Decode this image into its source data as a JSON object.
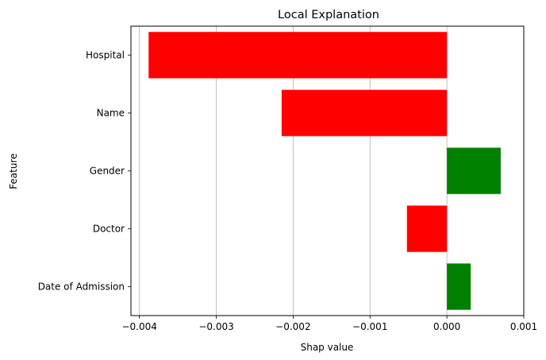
{
  "chart_data": {
    "type": "bar",
    "orientation": "horizontal",
    "title": "Local Explanation",
    "xlabel": "Shap value",
    "ylabel": "Feature",
    "categories": [
      "Hospital",
      "Name",
      "Gender",
      "Doctor",
      "Date of Admission"
    ],
    "values": [
      -0.00388,
      -0.00215,
      0.0007,
      -0.00052,
      0.00031
    ],
    "bar_colors": [
      "#ff0000",
      "#ff0000",
      "#008000",
      "#ff0000",
      "#008000"
    ],
    "xlim": [
      -0.00411,
      0.001
    ],
    "xticks": [
      -0.004,
      -0.003,
      -0.002,
      -0.001,
      0.0,
      0.001
    ],
    "xtick_labels": [
      "−0.004",
      "−0.003",
      "−0.002",
      "−0.001",
      "0.000",
      "0.001"
    ],
    "grid": "x-axis vertical lines"
  }
}
